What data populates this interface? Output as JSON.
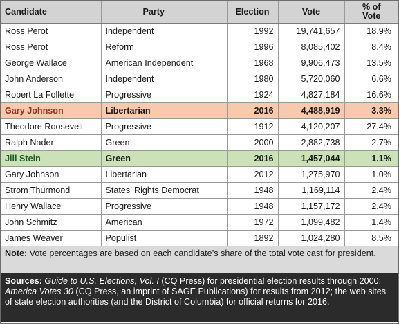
{
  "table": {
    "headers": [
      "Candidate",
      "Party",
      "Election",
      "Vote",
      "% of Vote"
    ],
    "header_pct_line1": "% of",
    "header_pct_line2": "Vote",
    "rows": [
      {
        "candidate": "Ross Perot",
        "party": "Independent",
        "election": "1992",
        "vote": "19,741,657",
        "pct": "18.9%"
      },
      {
        "candidate": "Ross Perot",
        "party": "Reform",
        "election": "1996",
        "vote": "8,085,402",
        "pct": "8.4%"
      },
      {
        "candidate": "George Wallace",
        "party": "American Independent",
        "election": "1968",
        "vote": "9,906,473",
        "pct": "13.5%"
      },
      {
        "candidate": "John Anderson",
        "party": "Independent",
        "election": "1980",
        "vote": "5,720,060",
        "pct": "6.6%"
      },
      {
        "candidate": "Robert La Follette",
        "party": "Progressive",
        "election": "1924",
        "vote": "4,827,184",
        "pct": "16.6%"
      },
      {
        "candidate": "Gary Johnson",
        "party": "Libertarian",
        "election": "2016",
        "vote": "4,488,919",
        "pct": "3.3%"
      },
      {
        "candidate": "Theodore Roosevelt",
        "party": "Progressive",
        "election": "1912",
        "vote": "4,120,207",
        "pct": "27.4%"
      },
      {
        "candidate": "Ralph Nader",
        "party": "Green",
        "election": "2000",
        "vote": "2,882,738",
        "pct": "2.7%"
      },
      {
        "candidate": "Jill Stein",
        "party": "Green",
        "election": "2016",
        "vote": "1,457,044",
        "pct": "1.1%"
      },
      {
        "candidate": "Gary Johnson",
        "party": "Libertarian",
        "election": "2012",
        "vote": "1,275,970",
        "pct": "1.0%"
      },
      {
        "candidate": "Strom Thurmond",
        "party": "States’ Rights Democrat",
        "election": "1948",
        "vote": "1,169,114",
        "pct": "2.4%"
      },
      {
        "candidate": "Henry Wallace",
        "party": "Progressive",
        "election": "1948",
        "vote": "1,157,172",
        "pct": "2.4%"
      },
      {
        "candidate": "John Schmitz",
        "party": "American",
        "election": "1972",
        "vote": "1,099,482",
        "pct": "1.4%"
      },
      {
        "candidate": "James Weaver",
        "party": "Populist",
        "election": "1892",
        "vote": "1,024,280",
        "pct": "8.5%"
      }
    ]
  },
  "colors": {
    "header_bg": "#d3d3d3",
    "highlight_orange": "#f7c9ad",
    "highlight_green": "#cbe1b7",
    "note_bg": "#dadada",
    "sources_bg": "#2b2b2b"
  },
  "note": {
    "label": "Note:",
    "text": " Vote percentages are based on each candidate’s share of the total vote cast for president."
  },
  "sources": {
    "label": "Sources: ",
    "ref1_title": "Guide to U.S. Elections, Vol. I",
    "ref1_rest": " (CQ Press) for  presidential election results through 2000; ",
    "ref2_title": "America Votes 30",
    "ref2_rest": " (CQ Press, an imprint of SAGE Publications) for results from 2012; the web sites of state election authorities (and the District of Columbia) for official returns for 2016."
  }
}
